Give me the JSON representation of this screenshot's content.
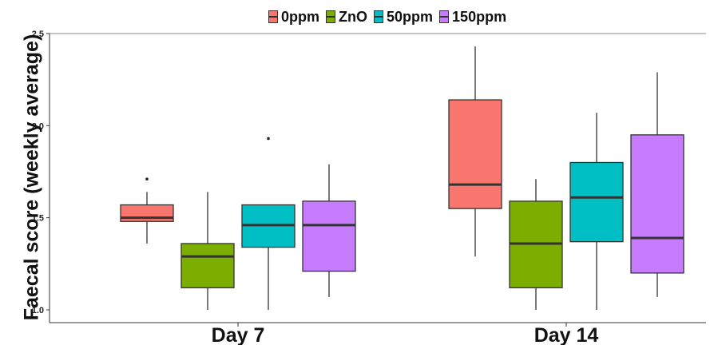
{
  "chart_data": {
    "type": "boxplot",
    "ylabel": "Faecal score (weekly average)",
    "xlabel": "",
    "ylim": [
      0.93,
      2.5
    ],
    "yticks": [
      1.0,
      1.5,
      2.0,
      2.5
    ],
    "ytick_labels": [
      "1.0",
      "1.5",
      "2.0",
      "2.5"
    ],
    "grid": false,
    "legend_position": "top",
    "categories": [
      "Day 7",
      "Day 14"
    ],
    "series": [
      {
        "name": "0ppm",
        "color": "#F8766D",
        "boxes": [
          {
            "whisker_low": 1.36,
            "q1": 1.48,
            "median": 1.5,
            "q3": 1.57,
            "whisker_high": 1.64,
            "outliers": [
              1.71
            ]
          },
          {
            "whisker_low": 1.29,
            "q1": 1.55,
            "median": 1.68,
            "q3": 2.14,
            "whisker_high": 2.43,
            "outliers": []
          }
        ]
      },
      {
        "name": "ZnO",
        "color": "#7CAE00",
        "boxes": [
          {
            "whisker_low": 1.0,
            "q1": 1.12,
            "median": 1.29,
            "q3": 1.36,
            "whisker_high": 1.64,
            "outliers": []
          },
          {
            "whisker_low": 1.0,
            "q1": 1.12,
            "median": 1.36,
            "q3": 1.59,
            "whisker_high": 1.71,
            "outliers": []
          }
        ]
      },
      {
        "name": "50ppm",
        "color": "#00BFC4",
        "boxes": [
          {
            "whisker_low": 1.0,
            "q1": 1.34,
            "median": 1.46,
            "q3": 1.57,
            "whisker_high": 1.57,
            "outliers": [
              1.93
            ]
          },
          {
            "whisker_low": 1.0,
            "q1": 1.37,
            "median": 1.61,
            "q3": 1.8,
            "whisker_high": 2.07,
            "outliers": []
          }
        ]
      },
      {
        "name": "150ppm",
        "color": "#C77CFF",
        "boxes": [
          {
            "whisker_low": 1.07,
            "q1": 1.21,
            "median": 1.46,
            "q3": 1.59,
            "whisker_high": 1.79,
            "outliers": []
          },
          {
            "whisker_low": 1.07,
            "q1": 1.2,
            "median": 1.39,
            "q3": 1.95,
            "whisker_high": 2.29,
            "outliers": []
          }
        ]
      }
    ]
  }
}
